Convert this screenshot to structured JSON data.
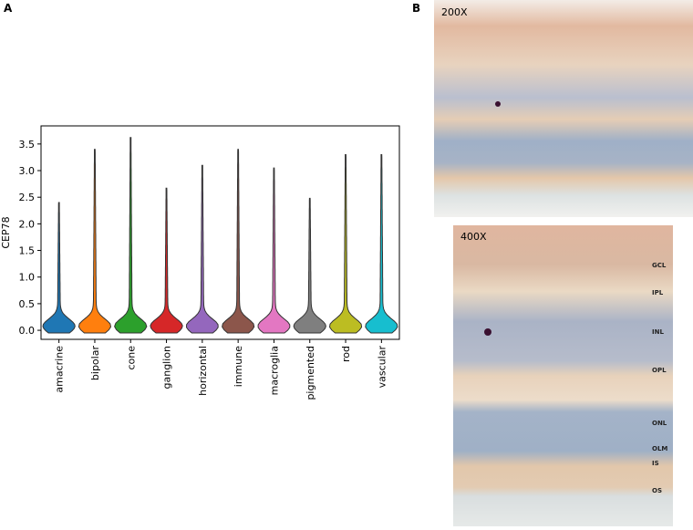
{
  "panels": {
    "left": "A",
    "right": "B"
  },
  "chart_data": {
    "type": "violin",
    "ylabel": "CEP78",
    "categories": [
      "amacrine",
      "bipolar",
      "cone",
      "ganglion",
      "horizontal",
      "immune",
      "macroglia",
      "pigmented",
      "rod",
      "vascular"
    ],
    "values": [
      2.4,
      3.4,
      3.62,
      2.67,
      3.1,
      3.4,
      3.05,
      2.48,
      3.3,
      3.3
    ],
    "colors": [
      "#1f77b4",
      "#ff7f0e",
      "#2ca02c",
      "#d62728",
      "#9467bd",
      "#8c564b",
      "#e377c2",
      "#7f7f7f",
      "#bcbd22",
      "#17becf"
    ],
    "ylim": [
      -0.17,
      3.84
    ],
    "yticks": [
      {
        "value": 0,
        "label": "0.0"
      },
      {
        "value": 0.5,
        "label": "0.5"
      },
      {
        "value": 1,
        "label": "1.0"
      },
      {
        "value": 1.5,
        "label": "1.5"
      },
      {
        "value": 2,
        "label": "2.0"
      },
      {
        "value": 2.5,
        "label": "2.5"
      },
      {
        "value": 3,
        "label": "3.0"
      },
      {
        "value": 3.5,
        "label": "3.5"
      }
    ]
  },
  "images": [
    {
      "label": "200X"
    },
    {
      "label": "400X",
      "layers": [
        "GCL",
        "IPL",
        "INL",
        "OPL",
        "ONL",
        "OLM",
        "IS",
        "OS"
      ]
    }
  ]
}
